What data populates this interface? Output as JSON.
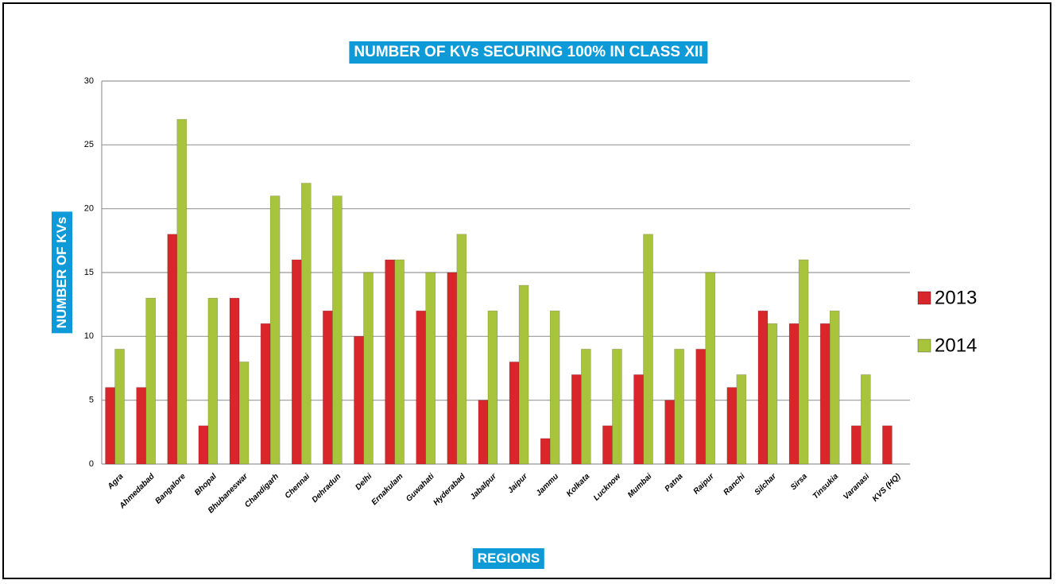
{
  "chart_data": {
    "type": "bar",
    "title": "NUMBER OF KVs SECURING 100% IN CLASS XII",
    "x_label": "REGIONS",
    "y_label": "NUMBER OF KVs",
    "categories": [
      "Agra",
      "Ahmedabad",
      "Bangalore",
      "Bhopal",
      "Bhubaneswar",
      "Chandigarh",
      "Chennai",
      "Dehradun",
      "Delhi",
      "Ernakulam",
      "Guwahati",
      "Hyderabad",
      "Jabalpur",
      "Jaipur",
      "Jammu",
      "Kolkata",
      "Lucknow",
      "Mumbai",
      "Patna",
      "Raipur",
      "Ranchi",
      "Silchar",
      "Sirsa",
      "Tinsukia",
      "Varanasi",
      "KVS (HQ)"
    ],
    "series": [
      {
        "name": "2013",
        "color": "#d9262b",
        "values": [
          6,
          6,
          18,
          3,
          13,
          11,
          16,
          12,
          10,
          16,
          12,
          15,
          5,
          8,
          2,
          7,
          3,
          7,
          5,
          9,
          6,
          12,
          11,
          11,
          3,
          3
        ]
      },
      {
        "name": "2014",
        "color": "#a8c43c",
        "values": [
          9,
          13,
          27,
          13,
          8,
          21,
          22,
          21,
          15,
          16,
          15,
          18,
          12,
          14,
          12,
          9,
          9,
          18,
          9,
          15,
          7,
          11,
          16,
          12,
          7,
          null
        ]
      }
    ],
    "ylim": [
      0,
      30
    ],
    "yticks": [
      0,
      5,
      10,
      15,
      20,
      25,
      30
    ],
    "grid": true,
    "legend": "right"
  }
}
